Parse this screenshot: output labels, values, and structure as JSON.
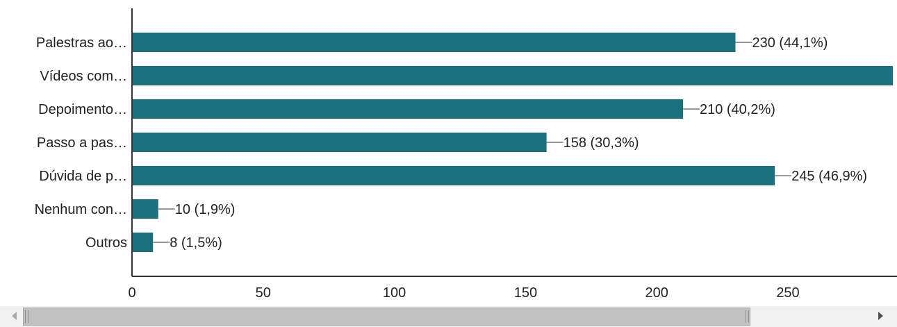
{
  "chart_data": {
    "type": "bar",
    "orientation": "horizontal",
    "categories": [
      "Palestras ao…",
      "Vídeos com…",
      "Depoimento…",
      "Passo a pas…",
      "Dúvida de p…",
      "Nenhum con…",
      "Outros"
    ],
    "values": [
      230,
      290,
      210,
      158,
      245,
      10,
      8
    ],
    "data_labels": [
      "230 (44,1%)",
      "",
      "210 (40,2%)",
      "158 (30,3%)",
      "245 (46,9%)",
      "10 (1,9%)",
      "8 (1,5%)"
    ],
    "x_ticks": [
      0,
      50,
      100,
      150,
      200,
      250
    ],
    "x_tick_labels": [
      "0",
      "50",
      "100",
      "150",
      "200",
      "250"
    ],
    "xlim": [
      0,
      290
    ],
    "grid": false,
    "bar_color": "#1b717e",
    "axis_color": "#333333",
    "leader_color": "#999999"
  },
  "scrollbar": {
    "left_icon": "triangle-left-icon",
    "right_icon": "triangle-right-icon"
  }
}
